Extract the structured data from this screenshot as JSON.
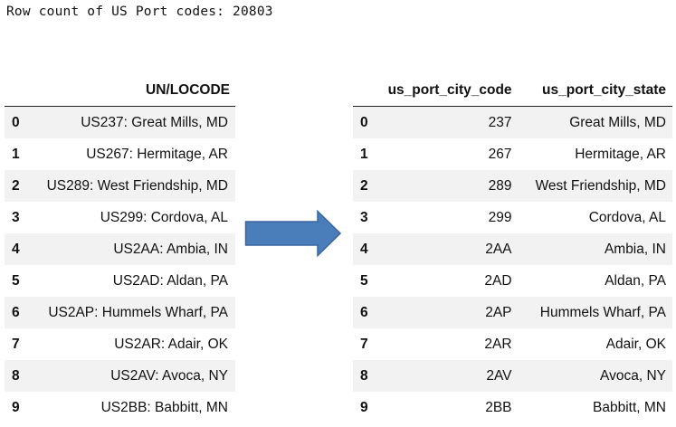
{
  "row_count_text": "Row count of US Port codes: 20803",
  "left_table": {
    "columns": [
      "",
      "UN/LOCODE"
    ],
    "rows": [
      {
        "index": "0",
        "unlocode": "US237: Great Mills, MD"
      },
      {
        "index": "1",
        "unlocode": "US267: Hermitage, AR"
      },
      {
        "index": "2",
        "unlocode": "US289: West Friendship, MD"
      },
      {
        "index": "3",
        "unlocode": "US299: Cordova, AL"
      },
      {
        "index": "4",
        "unlocode": "US2AA: Ambia, IN"
      },
      {
        "index": "5",
        "unlocode": "US2AD: Aldan, PA"
      },
      {
        "index": "6",
        "unlocode": "US2AP: Hummels Wharf, PA"
      },
      {
        "index": "7",
        "unlocode": "US2AR: Adair, OK"
      },
      {
        "index": "8",
        "unlocode": "US2AV: Avoca, NY"
      },
      {
        "index": "9",
        "unlocode": "US2BB: Babbitt, MN"
      }
    ]
  },
  "right_table": {
    "columns": [
      "",
      "us_port_city_code",
      "us_port_city_state"
    ],
    "rows": [
      {
        "index": "0",
        "code": "237",
        "city_state": "Great Mills, MD"
      },
      {
        "index": "1",
        "code": "267",
        "city_state": "Hermitage, AR"
      },
      {
        "index": "2",
        "code": "289",
        "city_state": "West Friendship, MD"
      },
      {
        "index": "3",
        "code": "299",
        "city_state": "Cordova, AL"
      },
      {
        "index": "4",
        "code": "2AA",
        "city_state": "Ambia, IN"
      },
      {
        "index": "5",
        "code": "2AD",
        "city_state": "Aldan, PA"
      },
      {
        "index": "6",
        "code": "2AP",
        "city_state": "Hummels Wharf, PA"
      },
      {
        "index": "7",
        "code": "2AR",
        "city_state": "Adair, OK"
      },
      {
        "index": "8",
        "code": "2AV",
        "city_state": "Avoca, NY"
      },
      {
        "index": "9",
        "code": "2BB",
        "city_state": "Babbitt, MN"
      }
    ]
  },
  "arrow": {
    "icon": "right-arrow-icon",
    "fill": "#4a7ebb",
    "stroke": "#3a66a0"
  }
}
